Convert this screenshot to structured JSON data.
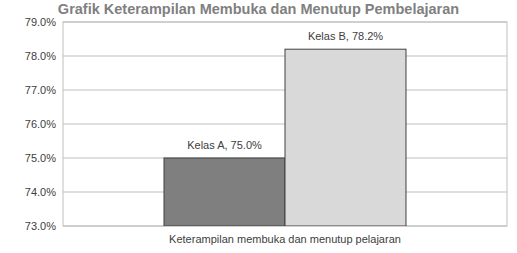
{
  "chart_data": {
    "type": "bar",
    "title": "Grafik Keterampilan Membuka dan Menutup Pembelajaran",
    "categories": [
      "Keterampilan membuka dan menutup pelajaran"
    ],
    "series": [
      {
        "name": "Kelas A",
        "color": "#7f7f7f",
        "values": [
          75.0
        ],
        "value_labels": [
          "Kelas A, 75.0%"
        ]
      },
      {
        "name": "Kelas B",
        "color": "#d9d9d9",
        "values": [
          78.2
        ],
        "value_labels": [
          "Kelas B, 78.2%"
        ]
      }
    ],
    "ylim": [
      73,
      79
    ],
    "yticks": [
      {
        "value": 73,
        "label": "73.0%"
      },
      {
        "value": 74,
        "label": "74.0%"
      },
      {
        "value": 75,
        "label": "75.0%"
      },
      {
        "value": 76,
        "label": "76.0%"
      },
      {
        "value": 77,
        "label": "77.0%"
      },
      {
        "value": 78,
        "label": "78.0%"
      },
      {
        "value": 79,
        "label": "79.0%"
      }
    ],
    "grid": true,
    "data_labels": true
  }
}
